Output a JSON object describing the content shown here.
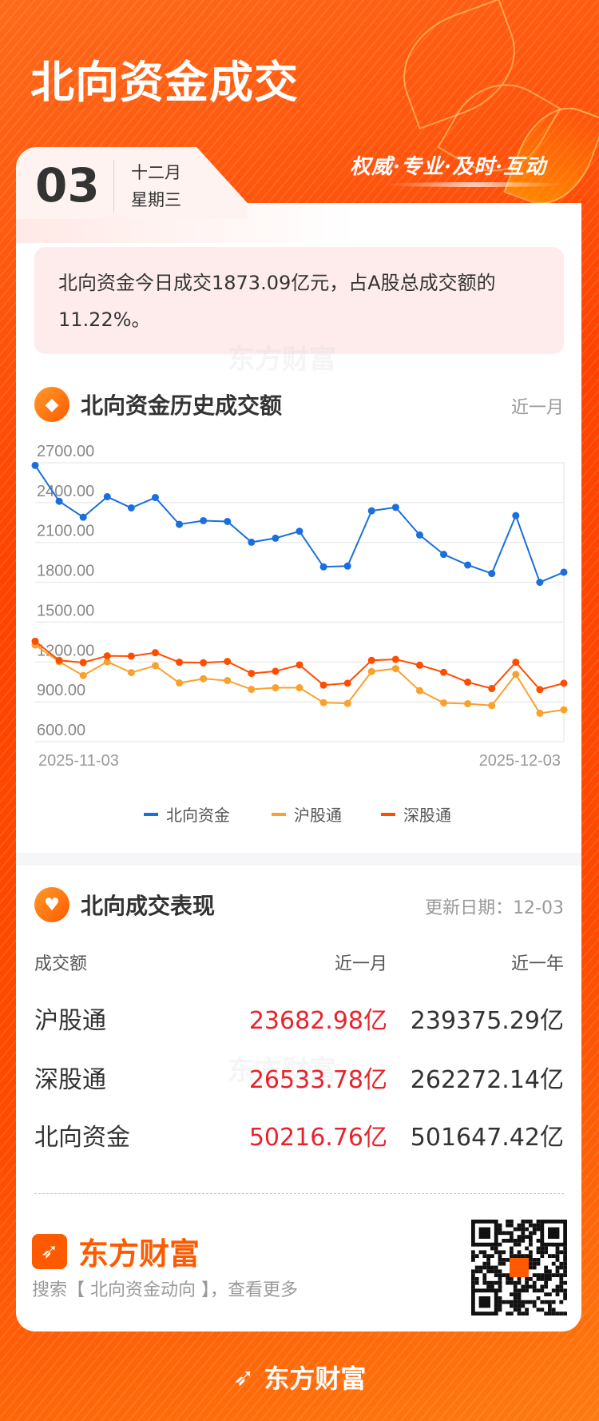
{
  "header": {
    "title": "北向资金成交",
    "slogan": "权威·专业·及时·互动"
  },
  "date": {
    "day": "03",
    "month": "十二月",
    "weekday": "星期三"
  },
  "summary": "北向资金今日成交1873.09亿元，占A股总成交额的11.22%。",
  "watermark": "东方财富",
  "history": {
    "title": "北向资金历史成交额",
    "range": "近一月",
    "icon": "coin-icon"
  },
  "chart_data": {
    "type": "line",
    "x_tick_labels": [
      "2025-11-03",
      "2025-12-03"
    ],
    "y_tick_labels": [
      "2700.00",
      "2400.00",
      "2100.00",
      "1800.00",
      "1500.00",
      "1200.00",
      "900.00",
      "600.00"
    ],
    "ylim": [
      600,
      2700
    ],
    "grid": true,
    "legend_placement": "bottom",
    "series": [
      {
        "name": "北向资金",
        "color": "#1a6fdc",
        "values": [
          2680,
          2410,
          2290,
          2444,
          2360,
          2438,
          2236,
          2264,
          2258,
          2102,
          2132,
          2184,
          1916,
          1922,
          2338,
          2364,
          2156,
          2010,
          1930,
          1866,
          2302,
          1800,
          1876
        ]
      },
      {
        "name": "沪股通",
        "color": "#f9a12e",
        "values": [
          1328,
          1202,
          1098,
          1202,
          1120,
          1172,
          1042,
          1074,
          1060,
          994,
          1006,
          1006,
          894,
          888,
          1128,
          1150,
          984,
          892,
          886,
          872,
          1106,
          814,
          840
        ]
      },
      {
        "name": "深股通",
        "color": "#ff4d00",
        "values": [
          1356,
          1212,
          1196,
          1246,
          1244,
          1270,
          1198,
          1194,
          1204,
          1114,
          1130,
          1178,
          1026,
          1040,
          1212,
          1220,
          1176,
          1122,
          1048,
          1000,
          1198,
          992,
          1040
        ]
      }
    ]
  },
  "performance": {
    "title": "北向成交表现",
    "update": "更新日期：12-03",
    "icon": "handshake-heart-icon",
    "headers": [
      "成交额",
      "近一月",
      "近一年"
    ],
    "rows": [
      {
        "name": "沪股通",
        "month": "23682.98亿",
        "year": "239375.29亿"
      },
      {
        "name": "深股通",
        "month": "26533.78亿",
        "year": "262272.14亿"
      },
      {
        "name": "北向资金",
        "month": "50216.76亿",
        "year": "501647.42亿"
      }
    ]
  },
  "brand": {
    "name": "东方财富",
    "search_hint": "搜索【 北向资金动向 】，查看更多"
  },
  "colors": {
    "accent": "#ff4a00",
    "up": "#e8232c"
  }
}
